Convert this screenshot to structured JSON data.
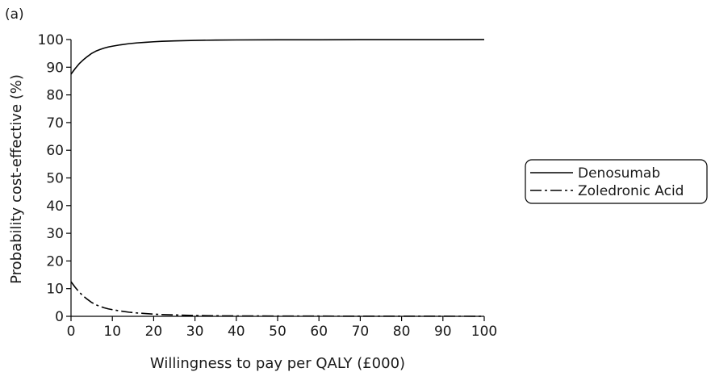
{
  "panel_label": "(a)",
  "chart_data": {
    "type": "line",
    "title": "",
    "xlabel": "Willingness to pay per QALY (£000)",
    "ylabel": "Probability cost-effective (%)",
    "xlim": [
      0,
      100
    ],
    "ylim": [
      0,
      100
    ],
    "x_ticks": [
      "0",
      "10",
      "20",
      "30",
      "40",
      "50",
      "60",
      "70",
      "80",
      "90",
      "100"
    ],
    "y_ticks": [
      "0",
      "10",
      "20",
      "30",
      "40",
      "50",
      "60",
      "70",
      "80",
      "90",
      "100"
    ],
    "grid": false,
    "legend_position": "right",
    "x": [
      0,
      1,
      2,
      3,
      4,
      5,
      6,
      7,
      8,
      9,
      10,
      12,
      14,
      16,
      18,
      20,
      22,
      25,
      30,
      35,
      40,
      50,
      60,
      70,
      80,
      90,
      100
    ],
    "series": [
      {
        "name": "Denosumab",
        "style": "solid",
        "color": "#000000",
        "values": [
          87.5,
          89.5,
          91.3,
          92.7,
          93.9,
          95.0,
          95.8,
          96.4,
          96.9,
          97.3,
          97.6,
          98.1,
          98.5,
          98.8,
          99.0,
          99.2,
          99.35,
          99.5,
          99.7,
          99.8,
          99.85,
          99.9,
          99.92,
          99.94,
          99.95,
          99.96,
          99.97
        ]
      },
      {
        "name": "Zoledronic Acid",
        "style": "dash-dot",
        "color": "#000000",
        "values": [
          12.5,
          10.5,
          8.7,
          7.3,
          6.1,
          5.0,
          4.2,
          3.6,
          3.1,
          2.7,
          2.4,
          1.9,
          1.5,
          1.2,
          1.0,
          0.8,
          0.65,
          0.5,
          0.3,
          0.2,
          0.15,
          0.1,
          0.08,
          0.06,
          0.05,
          0.04,
          0.03
        ]
      }
    ]
  }
}
